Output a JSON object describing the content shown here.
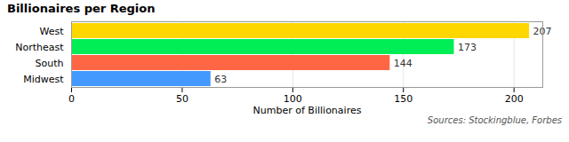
{
  "chart_data": {
    "type": "bar",
    "orientation": "horizontal",
    "title": "Billionaires per Region",
    "categories": [
      "Midwest",
      "South",
      "Northeast",
      "West"
    ],
    "values": [
      63,
      144,
      173,
      207
    ],
    "colors": [
      "#4499FF",
      "#FF6644",
      "#00EE55",
      "#FFD700"
    ],
    "xlabel": "Number of Billionaires",
    "xlim": [
      0,
      213
    ],
    "xticks": [
      0,
      50,
      100,
      150,
      200
    ],
    "grid": true,
    "data_labels": true,
    "caption": "Sources: Stockingblue, Forbes"
  }
}
